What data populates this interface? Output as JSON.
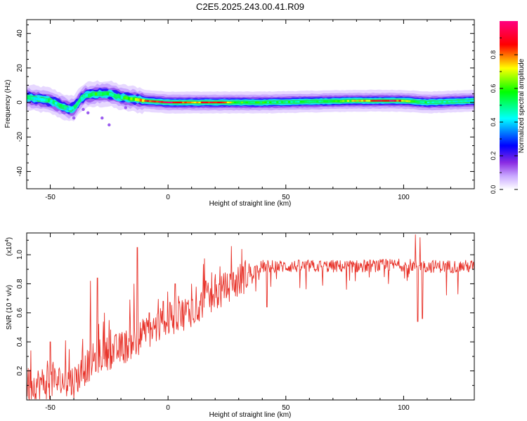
{
  "figure": {
    "title": "C2E5.2025.243.00.41.R09"
  },
  "chart_data": [
    {
      "type": "heatmap",
      "name": "spectrogram",
      "xlabel": "Height of straight line (km)",
      "ylabel": "Frequency (Hz)",
      "xlim": [
        -60,
        130
      ],
      "ylim": [
        -50,
        48
      ],
      "xticks": [
        -50,
        0,
        50,
        100
      ],
      "xtick_labels": [
        "-50",
        "0",
        "50",
        "100"
      ],
      "yticks": [
        -40,
        -20,
        0,
        20,
        40
      ],
      "ytick_labels": [
        "-40",
        "-20",
        "0",
        "20",
        "40"
      ],
      "ridge_frequency_points": [
        [
          -60,
          3
        ],
        [
          -55,
          2
        ],
        [
          -50,
          1
        ],
        [
          -45,
          -2
        ],
        [
          -42,
          -4
        ],
        [
          -40,
          -3
        ],
        [
          -37,
          2
        ],
        [
          -35,
          4
        ],
        [
          -30,
          5
        ],
        [
          -25,
          5
        ],
        [
          -20,
          3
        ],
        [
          -15,
          2
        ],
        [
          -10,
          1
        ],
        [
          0,
          0
        ],
        [
          20,
          0
        ],
        [
          40,
          0
        ],
        [
          60,
          0.5
        ],
        [
          80,
          1
        ],
        [
          100,
          1
        ],
        [
          110,
          0
        ],
        [
          130,
          1
        ]
      ],
      "amplitude_profile": [
        [
          -60,
          0.45
        ],
        [
          -50,
          0.5
        ],
        [
          -40,
          0.45
        ],
        [
          -30,
          0.55
        ],
        [
          -20,
          0.5
        ],
        [
          -10,
          0.8
        ],
        [
          0,
          0.95
        ],
        [
          10,
          0.75
        ],
        [
          20,
          0.9
        ],
        [
          30,
          0.6
        ],
        [
          40,
          0.55
        ],
        [
          60,
          0.5
        ],
        [
          80,
          0.7
        ],
        [
          95,
          0.95
        ],
        [
          105,
          0.5
        ],
        [
          130,
          0.45
        ]
      ],
      "colorbar": {
        "label": "Normalized spectral amplitude",
        "range": [
          0,
          1
        ],
        "ticks": [
          0.0,
          0.2,
          0.4,
          0.6,
          0.8
        ],
        "tick_labels": [
          "0.0",
          "0.2",
          "0.4",
          "0.6",
          "0.8"
        ],
        "colormap": [
          "#ffffff",
          "#c9a8ff",
          "#8a2be2",
          "#0000ff",
          "#00ffff",
          "#00ff00",
          "#ffff00",
          "#ff0000",
          "#ff007f"
        ]
      }
    },
    {
      "type": "line",
      "name": "snr",
      "xlabel": "Height of straight line (km)",
      "ylabel": "SNR (10 * v/v)",
      "y_multiplier": "(x10",
      "y_multiplier_exp": "4",
      "y_multiplier_close": ")",
      "xlim": [
        -60,
        130
      ],
      "ylim": [
        0,
        1.15
      ],
      "xticks": [
        -50,
        0,
        50,
        100
      ],
      "xtick_labels": [
        "-50",
        "0",
        "50",
        "100"
      ],
      "yticks": [
        0.2,
        0.4,
        0.6,
        0.8,
        1.0
      ],
      "ytick_labels": [
        "0.2",
        "0.4",
        "0.6",
        "0.8",
        "1.0"
      ],
      "color": "#e8332a",
      "trend_points": [
        [
          -60,
          0.1
        ],
        [
          -50,
          0.12
        ],
        [
          -40,
          0.13
        ],
        [
          -35,
          0.22
        ],
        [
          -30,
          0.3
        ],
        [
          -20,
          0.35
        ],
        [
          -10,
          0.45
        ],
        [
          0,
          0.55
        ],
        [
          10,
          0.62
        ],
        [
          20,
          0.72
        ],
        [
          30,
          0.82
        ],
        [
          35,
          0.88
        ],
        [
          40,
          0.92
        ],
        [
          50,
          0.92
        ],
        [
          60,
          0.92
        ],
        [
          80,
          0.92
        ],
        [
          100,
          0.93
        ],
        [
          110,
          0.92
        ],
        [
          130,
          0.92
        ]
      ],
      "spikes": [
        [
          -50,
          0.4
        ],
        [
          -42,
          0.35
        ],
        [
          -33,
          0.82
        ],
        [
          -30,
          0.84
        ],
        [
          -27,
          0.6
        ],
        [
          -25,
          0.55
        ],
        [
          -14.5,
          0.8
        ],
        [
          -13,
          1.05
        ],
        [
          -8,
          0.6
        ],
        [
          -2,
          0.68
        ],
        [
          3,
          0.8
        ],
        [
          10,
          0.8
        ],
        [
          12,
          0.78
        ],
        [
          16,
          0.82
        ],
        [
          22,
          0.92
        ],
        [
          42,
          0.64
        ],
        [
          105,
          1.14
        ],
        [
          107,
          1.12
        ],
        [
          108,
          0.56
        ],
        [
          106,
          0.54
        ]
      ]
    }
  ]
}
